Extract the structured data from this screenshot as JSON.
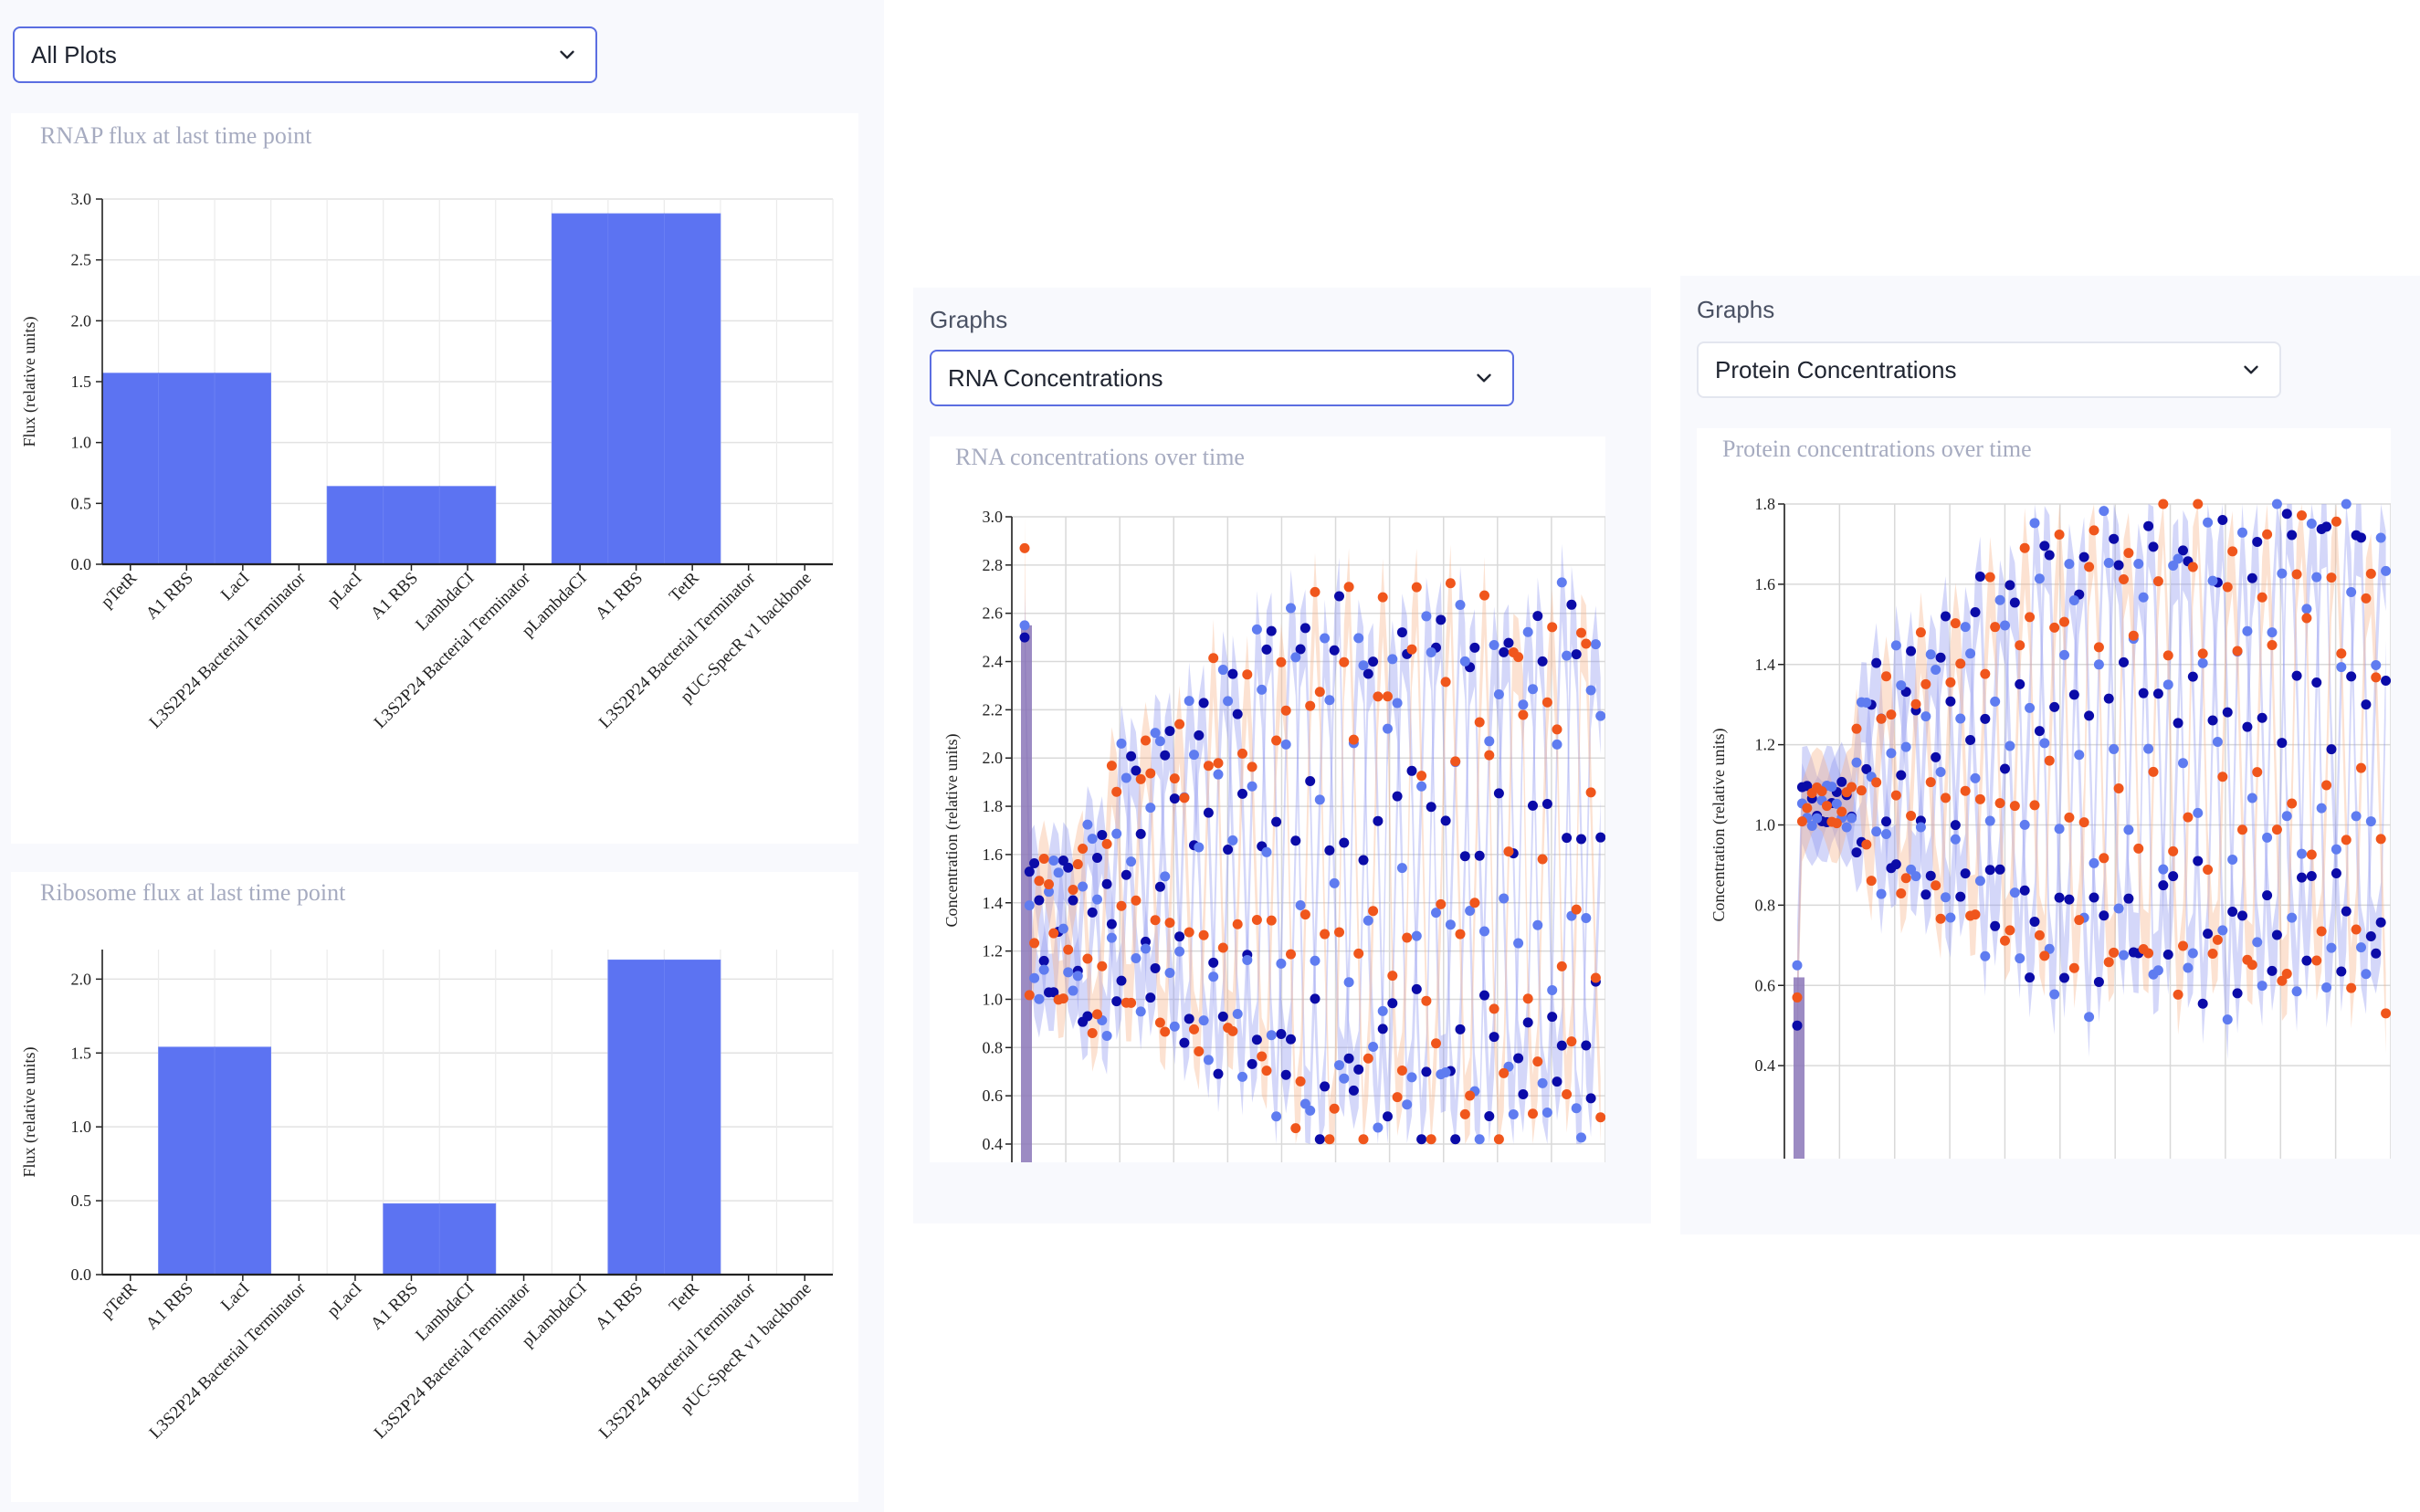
{
  "plot_select": {
    "value": "All Plots"
  },
  "rna_panel": {
    "label": "Graphs",
    "select_value": "RNA Concentrations"
  },
  "protein_panel": {
    "label": "Graphs",
    "select_value": "Protein Concentrations"
  },
  "colors": {
    "bar": "#5c73f2",
    "dark_blue": "#0b0ba8",
    "light_blue": "#5f7cf0",
    "orange": "#f0561c",
    "band_blue": "#8d96ef",
    "band_orange": "#f6b48a"
  },
  "chart_data": [
    {
      "id": "rnap",
      "type": "bar",
      "title": "RNAP flux at last time point",
      "ylabel": "Flux (relative units)",
      "ylim": [
        0,
        3.0
      ],
      "yticks": [
        "0.0",
        "0.5",
        "1.0",
        "1.5",
        "2.0",
        "2.5",
        "3.0"
      ],
      "categories": [
        "pTetR",
        "A1 RBS",
        "LacI",
        "L3S2P24 Bacterial Terminator",
        "pLacI",
        "A1 RBS",
        "LambdaCI",
        "L3S2P24 Bacterial Terminator",
        "pLambdaCI",
        "A1 RBS",
        "TetR",
        "L3S2P24 Bacterial Terminator",
        "pUC-SpecR v1 backbone"
      ],
      "values": [
        1.57,
        1.57,
        1.57,
        0,
        0.64,
        0.64,
        0.64,
        0,
        2.88,
        2.88,
        2.88,
        0,
        0
      ],
      "grid": true
    },
    {
      "id": "ribosome",
      "type": "bar",
      "title": "Ribosome flux at last time point",
      "ylabel": "Flux (relative units)",
      "ylim": [
        0,
        2.2
      ],
      "yticks": [
        "0.0",
        "0.5",
        "1.0",
        "1.5",
        "2.0"
      ],
      "categories": [
        "pTetR",
        "A1 RBS",
        "LacI",
        "L3S2P24 Bacterial Terminator",
        "pLacI",
        "A1 RBS",
        "LambdaCI",
        "L3S2P24 Bacterial Terminator",
        "pLambdaCI",
        "A1 RBS",
        "TetR",
        "L3S2P24 Bacterial Terminator",
        "pUC-SpecR v1 backbone"
      ],
      "values": [
        0,
        1.54,
        1.54,
        0,
        0,
        0.48,
        0.48,
        0,
        0,
        2.13,
        2.13,
        0,
        0
      ],
      "grid": true
    },
    {
      "id": "rna",
      "type": "scatter",
      "title": "RNA concentrations over time",
      "ylabel": "Concentration (relative units)",
      "ylim": [
        0.4,
        3.0
      ],
      "yticks": [
        "0.4",
        "0.6",
        "0.8",
        "1.0",
        "1.2",
        "1.4",
        "1.6",
        "1.8",
        "2.0",
        "2.2",
        "2.4",
        "2.6",
        "2.8",
        "3.0"
      ],
      "grid": true,
      "series": [
        {
          "values": [
            2.5,
            1.6,
            1.5,
            1.3,
            1.0,
            0.9,
            0.7,
            0.55,
            0.5,
            0.45,
            0.5,
            0.55
          ]
        },
        {
          "values": [
            2.55,
            1.5,
            1.2,
            1.05,
            0.9,
            0.8,
            0.65,
            0.58,
            0.52,
            0.5,
            0.48,
            0.5
          ]
        },
        {
          "values": [
            2.87,
            1.55,
            1.1,
            1.0,
            0.85,
            0.75,
            0.68,
            0.6,
            0.52,
            0.48,
            0.45,
            0.5
          ]
        }
      ]
    },
    {
      "id": "protein",
      "type": "scatter",
      "title": "Protein concentrations over time",
      "ylabel": "Concentration (relative units)",
      "ylim": [
        0.2,
        1.8
      ],
      "yticks": [
        "0.4",
        "0.6",
        "0.8",
        "1.0",
        "1.2",
        "1.4",
        "1.6",
        "1.8"
      ],
      "grid": true,
      "series": [
        {
          "values": [
            0.5,
            0.9,
            1.0,
            1.1,
            1.2,
            1.3,
            1.45,
            1.55,
            1.6,
            1.65,
            1.65,
            1.6
          ]
        },
        {
          "values": [
            0.65,
            1.0,
            1.1,
            1.15,
            1.25,
            1.35,
            1.5,
            1.6,
            1.65,
            1.7,
            1.7,
            1.65
          ]
        },
        {
          "values": [
            0.57,
            1.05,
            1.15,
            1.2,
            1.3,
            1.4,
            1.55,
            1.65,
            1.7,
            1.72,
            1.72,
            1.7
          ]
        }
      ]
    }
  ]
}
